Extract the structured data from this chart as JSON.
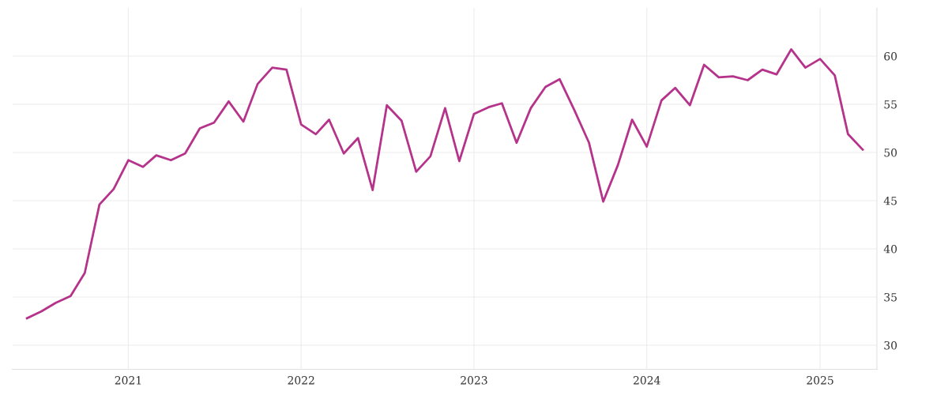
{
  "chart_data": {
    "type": "line",
    "x": [
      "2020-06",
      "2020-07",
      "2020-08",
      "2020-09",
      "2020-10",
      "2020-11",
      "2020-12",
      "2021-01",
      "2021-02",
      "2021-03",
      "2021-04",
      "2021-05",
      "2021-06",
      "2021-07",
      "2021-08",
      "2021-09",
      "2021-10",
      "2021-11",
      "2021-12",
      "2022-01",
      "2022-02",
      "2022-03",
      "2022-04",
      "2022-05",
      "2022-06",
      "2022-07",
      "2022-08",
      "2022-09",
      "2022-10",
      "2022-11",
      "2022-12",
      "2023-01",
      "2023-02",
      "2023-03",
      "2023-04",
      "2023-05",
      "2023-06",
      "2023-07",
      "2023-08",
      "2023-09",
      "2023-10",
      "2023-11",
      "2023-12",
      "2024-01",
      "2024-02",
      "2024-03",
      "2024-04",
      "2024-05",
      "2024-06",
      "2024-07",
      "2024-08",
      "2024-09",
      "2024-10",
      "2024-11",
      "2024-12",
      "2025-01",
      "2025-02",
      "2025-03",
      "2025-04"
    ],
    "series": [
      {
        "color": "#b5338a",
        "values": [
          32.8,
          33.5,
          34.4,
          35.1,
          37.5,
          44.6,
          46.2,
          49.2,
          48.5,
          49.7,
          49.2,
          49.9,
          52.5,
          53.1,
          55.3,
          53.2,
          57.1,
          58.8,
          58.6,
          52.9,
          51.9,
          53.4,
          49.9,
          51.5,
          46.1,
          54.9,
          53.3,
          48.0,
          49.6,
          54.6,
          49.1,
          54.0,
          54.7,
          55.1,
          51.0,
          54.6,
          56.8,
          57.6,
          54.4,
          51.0,
          44.9,
          48.7,
          53.4,
          50.6,
          55.4,
          56.7,
          54.9,
          59.1,
          57.8,
          57.9,
          57.5,
          58.6,
          58.1,
          60.7,
          58.8,
          59.7,
          58.0,
          51.9,
          50.3
        ]
      }
    ],
    "xlim": [
      "2020-05",
      "2025-05"
    ],
    "xticks": [
      {
        "value": "2021-01",
        "label": "2021"
      },
      {
        "value": "2022-01",
        "label": "2022"
      },
      {
        "value": "2023-01",
        "label": "2023"
      },
      {
        "value": "2024-01",
        "label": "2024"
      },
      {
        "value": "2025-01",
        "label": "2025"
      }
    ],
    "ylim": [
      27.5,
      65
    ],
    "yticks": [
      30,
      35,
      40,
      45,
      50,
      55,
      60
    ],
    "grid": true,
    "line_style": "solid",
    "marker": "none"
  }
}
